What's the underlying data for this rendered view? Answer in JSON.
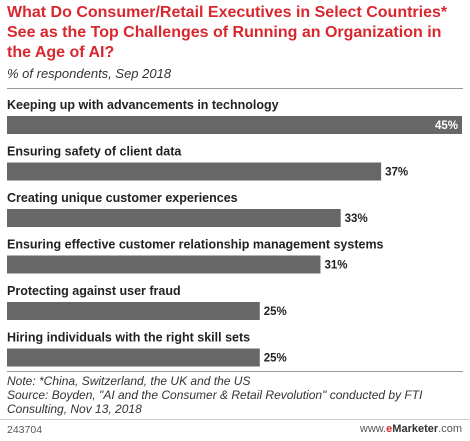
{
  "colors": {
    "bar": "#676767",
    "title": "#d9272e"
  },
  "chart_data": {
    "type": "bar",
    "orientation": "horizontal",
    "title": "What Do Consumer/Retail Executives in Select Countries* See as the Top Challenges of Running an Organization in the Age of AI?",
    "subtitle": "% of respondents, Sep 2018",
    "categories": [
      "Keeping up with advancements in technology",
      "Ensuring safety of client data",
      "Creating unique customer experiences",
      "Ensuring effective customer relationship management systems",
      "Protecting against user fraud",
      "Hiring individuals with the right skill sets"
    ],
    "values": [
      45,
      37,
      33,
      31,
      25,
      25
    ],
    "value_labels": [
      "45%",
      "37%",
      "33%",
      "31%",
      "25%",
      "25%"
    ],
    "xlim": [
      0,
      45
    ]
  },
  "note": "Note: *China, Switzerland, the UK and the US",
  "source": "Source: Boyden, \"AI and the Consumer & Retail Revolution\" conducted by FTI Consulting, Nov 13, 2018",
  "footer": {
    "id": "243704",
    "brand_prefix": "www.",
    "brand_e": "e",
    "brand_rest": "Marketer",
    "brand_suffix": ".com"
  }
}
